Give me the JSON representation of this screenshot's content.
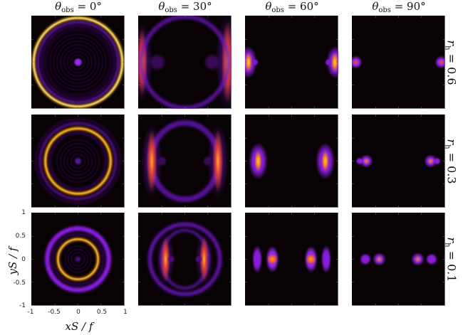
{
  "figure": {
    "column_titles": [
      {
        "symbol": "θ",
        "sub": "obs",
        "value": "= 0°"
      },
      {
        "symbol": "θ",
        "sub": "obs",
        "value": "= 30°"
      },
      {
        "symbol": "θ",
        "sub": "obs",
        "value": "= 60°"
      },
      {
        "symbol": "θ",
        "sub": "obs",
        "value": "= 90°"
      }
    ],
    "row_labels": [
      {
        "symbol": "r",
        "sub": "h",
        "value": "= 0.6"
      },
      {
        "symbol": "r",
        "sub": "h",
        "value": "= 0.3"
      },
      {
        "symbol": "r",
        "sub": "h",
        "value": "= 0.1"
      }
    ],
    "x_axis": {
      "label": "xS / f",
      "ticks": [
        "-1",
        "-0.5",
        "0",
        "0.5",
        "1"
      ]
    },
    "y_axis": {
      "label": "yS / f",
      "ticks": [
        "1",
        "0.5",
        "0",
        "-0.5",
        "-1"
      ]
    }
  },
  "chart_data": {
    "type": "heatmap",
    "title": "",
    "layout": "3 rows × 4 columns grid of image-plane intensity maps",
    "columns": [
      "θobs = 0°",
      "θobs = 30°",
      "θobs = 60°",
      "θobs = 90°"
    ],
    "rows": [
      "rh = 0.6",
      "rh = 0.3",
      "rh = 0.1"
    ],
    "xlabel": "xS/f",
    "ylabel": "yS/f",
    "xlim": [
      -1,
      1
    ],
    "ylim": [
      -1,
      1
    ],
    "xticks": [
      -1,
      -0.5,
      0,
      0.5,
      1
    ],
    "yticks": [
      -1,
      -0.5,
      0,
      0.5,
      1
    ],
    "colormap": [
      "#000000",
      "#3a0a4a",
      "#8a1ee0",
      "#d8402a",
      "#ff9a10",
      "#ffe060"
    ],
    "background": "#080205",
    "panels": [
      {
        "row": 0,
        "col": 0,
        "description": "bright Einstein ring radius ~0.95 with concentric faint fringes and central dot",
        "features": [
          {
            "kind": "ring",
            "cx": 0,
            "cy": 0,
            "rx": 0.95,
            "ry": 0.95,
            "width": 0.06,
            "color": "#ffc030",
            "core": "#ffee90"
          },
          {
            "kind": "ring",
            "cx": 0,
            "cy": 0,
            "rx": 0.86,
            "ry": 0.86,
            "width": 0.04,
            "color": "#7a1ad0"
          },
          {
            "kind": "ring",
            "cx": 0,
            "cy": 0,
            "rx": 0.78,
            "ry": 0.78,
            "width": 0.03,
            "color": "#4a0d80"
          },
          {
            "kind": "ring",
            "cx": 0,
            "cy": 0,
            "rx": 0.7,
            "ry": 0.7,
            "width": 0.025,
            "color": "#320a58"
          },
          {
            "kind": "fringes",
            "cx": 0,
            "cy": 0,
            "rmax": 0.64,
            "step": 0.075,
            "color": "#28073f"
          },
          {
            "kind": "spot",
            "cx": 0,
            "cy": 0,
            "r": 0.06,
            "color": "#9a2af0"
          }
        ]
      },
      {
        "row": 0,
        "col": 1,
        "description": "two arcs at left and right edges, x≈±0.95, brightest near y=0",
        "features": [
          {
            "kind": "arc",
            "cx": -0.93,
            "cy": 0,
            "rx": 0.07,
            "ry": 0.45,
            "color": "#e04030",
            "core": "#ff9a20"
          },
          {
            "kind": "arc",
            "cx": 0.93,
            "cy": 0,
            "rx": 0.08,
            "ry": 0.55,
            "color": "#e04030",
            "core": "#ffb030"
          },
          {
            "kind": "ring",
            "cx": 0,
            "cy": 0,
            "rx": 0.93,
            "ry": 0.98,
            "width": 0.1,
            "color": "#6a18c0",
            "opacity": 0.7
          },
          {
            "kind": "spot",
            "cx": -0.6,
            "cy": 0,
            "r": 0.12,
            "color": "#3a0a5a"
          },
          {
            "kind": "spot",
            "cx": 0.6,
            "cy": 0,
            "r": 0.12,
            "color": "#3a0a5a"
          }
        ]
      },
      {
        "row": 0,
        "col": 2,
        "description": "two compact bright spots at edges x≈±0.95, y=0",
        "features": [
          {
            "kind": "blob",
            "cx": -0.95,
            "cy": 0,
            "rx": 0.12,
            "ry": 0.22,
            "color": "#8a1ee0"
          },
          {
            "kind": "blob",
            "cx": -0.94,
            "cy": 0,
            "rx": 0.05,
            "ry": 0.13,
            "color": "#ff8a10",
            "core": "#ffe060"
          },
          {
            "kind": "spot",
            "cx": -0.8,
            "cy": 0,
            "r": 0.05,
            "color": "#7a1ad0"
          },
          {
            "kind": "blob",
            "cx": 0.95,
            "cy": 0,
            "rx": 0.12,
            "ry": 0.22,
            "color": "#8a1ee0"
          },
          {
            "kind": "blob",
            "cx": 0.94,
            "cy": 0,
            "rx": 0.05,
            "ry": 0.13,
            "color": "#ff8a10",
            "core": "#ffe060"
          },
          {
            "kind": "spot",
            "cx": 0.8,
            "cy": 0,
            "r": 0.05,
            "color": "#7a1ad0"
          }
        ]
      },
      {
        "row": 0,
        "col": 3,
        "description": "two point-like images at x≈±0.93, y=0",
        "features": [
          {
            "kind": "spot",
            "cx": -0.93,
            "cy": 0,
            "r": 0.09,
            "color": "#9a2af0",
            "core": "#ff5020"
          },
          {
            "kind": "spot",
            "cx": 0.93,
            "cy": 0,
            "r": 0.09,
            "color": "#9a2af0",
            "core": "#ff5020"
          }
        ]
      },
      {
        "row": 1,
        "col": 0,
        "description": "Einstein ring radius ~0.7 with outer purple rings and central dot",
        "features": [
          {
            "kind": "ring",
            "cx": 0,
            "cy": 0,
            "rx": 0.9,
            "ry": 0.9,
            "width": 0.03,
            "color": "#3a0a5a"
          },
          {
            "kind": "ring",
            "cx": 0,
            "cy": 0,
            "rx": 0.81,
            "ry": 0.81,
            "width": 0.04,
            "color": "#6a18b8"
          },
          {
            "kind": "ring",
            "cx": 0,
            "cy": 0,
            "rx": 0.7,
            "ry": 0.7,
            "width": 0.06,
            "color": "#ff9a10",
            "core": "#ffc840"
          },
          {
            "kind": "ring",
            "cx": 0,
            "cy": 0,
            "rx": 0.6,
            "ry": 0.6,
            "width": 0.03,
            "color": "#4a0d80"
          },
          {
            "kind": "fringes",
            "cx": 0,
            "cy": 0,
            "rmax": 0.52,
            "step": 0.075,
            "color": "#25073a"
          },
          {
            "kind": "spot",
            "cx": 0,
            "cy": 0,
            "r": 0.05,
            "color": "#5a14a0"
          }
        ]
      },
      {
        "row": 1,
        "col": 1,
        "description": "two bright arcs at x≈±0.72 with purple halo ring",
        "features": [
          {
            "kind": "ring",
            "cx": 0,
            "cy": 0,
            "rx": 0.72,
            "ry": 0.82,
            "width": 0.12,
            "color": "#6a18c0",
            "opacity": 0.75
          },
          {
            "kind": "arc",
            "cx": -0.72,
            "cy": 0,
            "rx": 0.07,
            "ry": 0.42,
            "color": "#e04030",
            "core": "#ffb030"
          },
          {
            "kind": "arc",
            "cx": 0.72,
            "cy": 0,
            "rx": 0.07,
            "ry": 0.42,
            "color": "#e04030",
            "core": "#ffb030"
          },
          {
            "kind": "spot",
            "cx": -0.5,
            "cy": 0,
            "r": 0.07,
            "color": "#3a0a5a"
          },
          {
            "kind": "spot",
            "cx": 0.5,
            "cy": 0,
            "r": 0.07,
            "color": "#3a0a5a"
          }
        ]
      },
      {
        "row": 1,
        "col": 2,
        "description": "two elongated bright images at x≈±0.73, y=0",
        "features": [
          {
            "kind": "blob",
            "cx": -0.73,
            "cy": 0,
            "rx": 0.13,
            "ry": 0.25,
            "color": "#8a1ee0"
          },
          {
            "kind": "blob",
            "cx": -0.73,
            "cy": 0,
            "rx": 0.05,
            "ry": 0.14,
            "color": "#ff8a10",
            "core": "#ffd050"
          },
          {
            "kind": "blob",
            "cx": 0.73,
            "cy": 0,
            "rx": 0.13,
            "ry": 0.25,
            "color": "#8a1ee0"
          },
          {
            "kind": "blob",
            "cx": 0.73,
            "cy": 0,
            "rx": 0.05,
            "ry": 0.14,
            "color": "#ff8a10",
            "core": "#ffd050"
          }
        ]
      },
      {
        "row": 1,
        "col": 3,
        "description": "two bright point images at x≈±0.7 with faint companions at x≈±0.85",
        "features": [
          {
            "kind": "spot",
            "cx": -0.85,
            "cy": 0,
            "r": 0.05,
            "color": "#8a1ee0"
          },
          {
            "kind": "spot",
            "cx": -0.7,
            "cy": 0,
            "r": 0.09,
            "color": "#9a2af0",
            "core": "#ff8a10"
          },
          {
            "kind": "spot",
            "cx": 0.7,
            "cy": 0,
            "r": 0.09,
            "color": "#9a2af0",
            "core": "#ff8a10"
          },
          {
            "kind": "spot",
            "cx": 0.84,
            "cy": 0,
            "r": 0.05,
            "color": "#8a1ee0"
          }
        ]
      },
      {
        "row": 2,
        "col": 0,
        "description": "inner bright ring radius ~0.43 and broad purple outer ring radius ~0.66",
        "features": [
          {
            "kind": "ring",
            "cx": 0,
            "cy": 0,
            "rx": 0.66,
            "ry": 0.66,
            "width": 0.1,
            "color": "#8a1ee0"
          },
          {
            "kind": "ring",
            "cx": 0,
            "cy": 0,
            "rx": 0.54,
            "ry": 0.54,
            "width": 0.03,
            "color": "#4a0d80"
          },
          {
            "kind": "ring",
            "cx": 0,
            "cy": 0,
            "rx": 0.43,
            "ry": 0.43,
            "width": 0.055,
            "color": "#ff9a10",
            "core": "#ffd050"
          },
          {
            "kind": "fringes",
            "cx": 0,
            "cy": 0,
            "rmax": 0.34,
            "step": 0.07,
            "color": "#25073a"
          },
          {
            "kind": "spot",
            "cx": 0,
            "cy": 0,
            "r": 0.04,
            "color": "#4a0d80"
          }
        ]
      },
      {
        "row": 2,
        "col": 1,
        "description": "two bright arcs at x≈±0.42 with multiple purple halo rings",
        "features": [
          {
            "kind": "ring",
            "cx": 0,
            "cy": 0,
            "rx": 0.75,
            "ry": 0.75,
            "width": 0.09,
            "color": "#6a18c0",
            "opacity": 0.8
          },
          {
            "kind": "ring",
            "cx": 0,
            "cy": 0,
            "rx": 0.5,
            "ry": 0.62,
            "width": 0.07,
            "color": "#5a14a0",
            "opacity": 0.8
          },
          {
            "kind": "arc",
            "cx": -0.42,
            "cy": 0,
            "rx": 0.06,
            "ry": 0.3,
            "color": "#e04030",
            "core": "#ffb030"
          },
          {
            "kind": "arc",
            "cx": 0.42,
            "cy": 0,
            "rx": 0.06,
            "ry": 0.3,
            "color": "#e04030",
            "core": "#ffb030"
          },
          {
            "kind": "spot",
            "cx": -0.3,
            "cy": 0,
            "r": 0.05,
            "color": "#4a0d80"
          },
          {
            "kind": "spot",
            "cx": 0.3,
            "cy": 0,
            "r": 0.05,
            "color": "#4a0d80"
          }
        ]
      },
      {
        "row": 2,
        "col": 2,
        "description": "two bright spots at x≈±0.42 and fainter arcs at x≈±0.75",
        "features": [
          {
            "kind": "blob",
            "cx": -0.75,
            "cy": 0,
            "rx": 0.07,
            "ry": 0.19,
            "color": "#8a1ee0"
          },
          {
            "kind": "blob",
            "cx": -0.42,
            "cy": 0,
            "rx": 0.09,
            "ry": 0.18,
            "color": "#9a2af0"
          },
          {
            "kind": "spot",
            "cx": -0.42,
            "cy": 0,
            "r": 0.07,
            "color": "#ff6a10",
            "core": "#ffa030"
          },
          {
            "kind": "blob",
            "cx": 0.42,
            "cy": 0,
            "rx": 0.09,
            "ry": 0.18,
            "color": "#9a2af0"
          },
          {
            "kind": "spot",
            "cx": 0.42,
            "cy": 0,
            "r": 0.07,
            "color": "#ff6a10",
            "core": "#ffa030"
          },
          {
            "kind": "blob",
            "cx": 0.75,
            "cy": 0,
            "rx": 0.07,
            "ry": 0.19,
            "color": "#8a1ee0"
          }
        ]
      },
      {
        "row": 2,
        "col": 3,
        "description": "four point images on x-axis at x≈±0.72 (faint) and ±0.42 (bright)",
        "features": [
          {
            "kind": "spot",
            "cx": -0.72,
            "cy": 0,
            "r": 0.08,
            "color": "#8a1ee0"
          },
          {
            "kind": "spot",
            "cx": -0.42,
            "cy": 0,
            "r": 0.09,
            "color": "#9a2af0",
            "core": "#ff8a10"
          },
          {
            "kind": "spot",
            "cx": 0.42,
            "cy": 0,
            "r": 0.09,
            "color": "#9a2af0",
            "core": "#ff8a10"
          },
          {
            "kind": "spot",
            "cx": 0.72,
            "cy": 0,
            "r": 0.08,
            "color": "#8a1ee0"
          }
        ]
      }
    ]
  }
}
